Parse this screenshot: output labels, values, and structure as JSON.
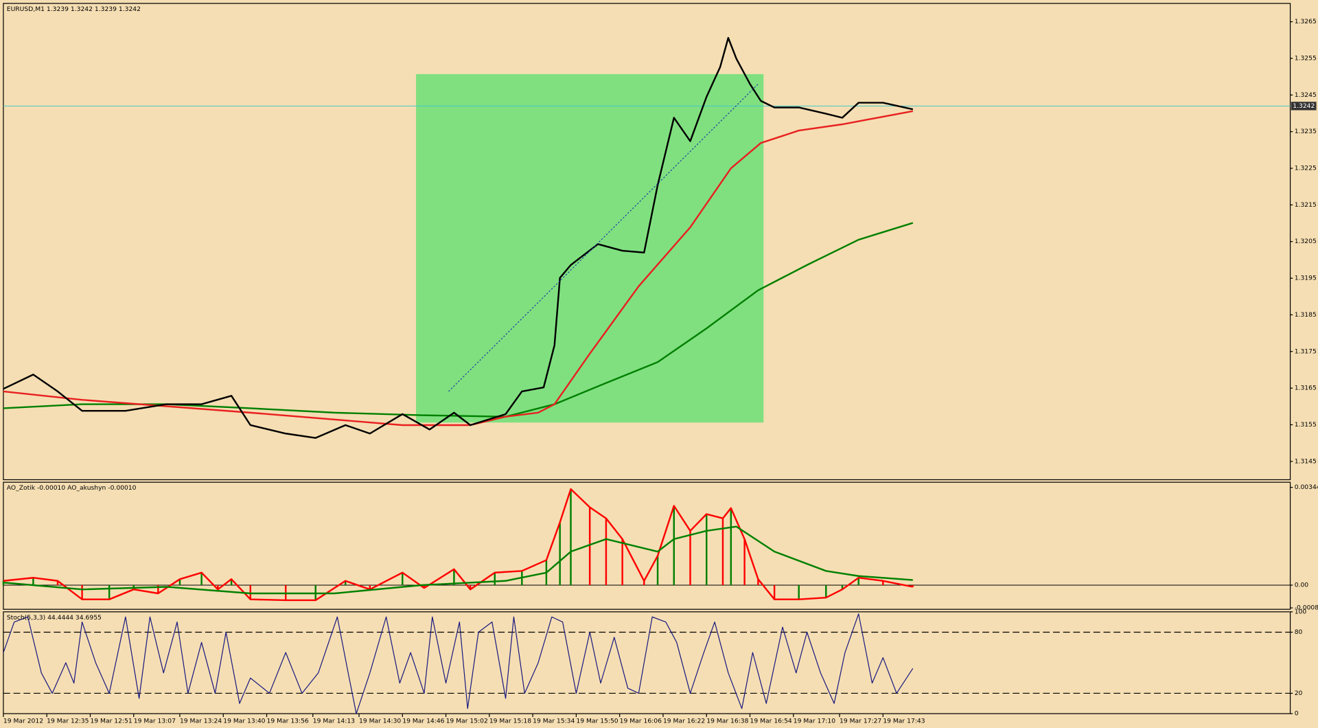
{
  "chart_data": [
    {
      "type": "line",
      "title": "EURUSD,M1  1.3239 1.3242 1.3239 1.3242",
      "xlim": [
        6,
        480
      ],
      "ylim": [
        1.314,
        1.327
      ],
      "yticks": [
        1.3265,
        1.3255,
        1.3245,
        1.3235,
        1.3225,
        1.3215,
        1.3205,
        1.3195,
        1.3185,
        1.3175,
        1.3165,
        1.3155,
        1.3145
      ],
      "rectangle": {
        "x": [
          158,
          286
        ],
        "y": [
          1.31556,
          1.32507
        ],
        "color": "#80e080"
      },
      "trendline": {
        "x": [
          170,
          284
        ],
        "y": [
          1.31641,
          1.3248
        ],
        "color": "#2040a0"
      },
      "last_price": 1.3242,
      "last_price_color": "#40c8c8",
      "series": [
        {
          "color": "#008000",
          "width": 2,
          "x": [
            6,
            35,
            66,
            97,
            128,
            160,
            191,
            209,
            228,
            247,
            265,
            284,
            302,
            321,
            341
          ],
          "values": [
            1.31595,
            1.31606,
            1.31606,
            1.31595,
            1.31583,
            1.31576,
            1.31572,
            1.31606,
            1.31664,
            1.31721,
            1.31813,
            1.31917,
            1.31986,
            1.32055,
            1.32101
          ]
        },
        {
          "color": "#e82020",
          "width": 2,
          "x": [
            6,
            35,
            97,
            153,
            178,
            191,
            203,
            209,
            222,
            240,
            259,
            274,
            285,
            299,
            315,
            341
          ],
          "values": [
            1.31641,
            1.31618,
            1.31583,
            1.31549,
            1.31549,
            1.31572,
            1.31583,
            1.31606,
            1.31744,
            1.31928,
            1.32089,
            1.3225,
            1.32319,
            1.32353,
            1.3237,
            1.32406
          ]
        },
        {
          "color": "#000000",
          "width": 2,
          "x": [
            6,
            17,
            26,
            35,
            51,
            66,
            79,
            90,
            97,
            110,
            121,
            132,
            141,
            153,
            163,
            172,
            178,
            191,
            197,
            205,
            209,
            211,
            215,
            225,
            234,
            242,
            247,
            253,
            259,
            265,
            270,
            273,
            276,
            281,
            285,
            290,
            299,
            309,
            315,
            321,
            330,
            341
          ],
          "values": [
            1.31648,
            1.31687,
            1.31641,
            1.31588,
            1.31588,
            1.31606,
            1.31606,
            1.31629,
            1.31549,
            1.31526,
            1.31514,
            1.31549,
            1.31526,
            1.31579,
            1.31537,
            1.31583,
            1.31549,
            1.31579,
            1.31641,
            1.31652,
            1.31767,
            1.31951,
            1.31986,
            1.32043,
            1.32025,
            1.3202,
            1.32204,
            1.32388,
            1.32324,
            1.32445,
            1.32526,
            1.32606,
            1.32549,
            1.3248,
            1.32434,
            1.32416,
            1.32416,
            1.32399,
            1.32388,
            1.32429,
            1.32429,
            1.32411
          ]
        }
      ]
    },
    {
      "type": "histogram-line",
      "title": "AO_Zotik -0.00010  AO_akushyn -0.00010",
      "xlim": [
        6,
        480
      ],
      "ylim": [
        -0.00085,
        0.00362
      ],
      "yticks": [
        0.00344,
        {
          "value": 0,
          "label": "0.00"
        },
        -0.0008
      ],
      "zero_line": true,
      "bar_colors": [
        "#008000",
        "#ff0000"
      ],
      "series": [
        {
          "color": "#ff0000",
          "width": 2,
          "histogram": true,
          "x": [
            6,
            17,
            26,
            35,
            45,
            54,
            63,
            71,
            79,
            85,
            90,
            97,
            110,
            121,
            132,
            141,
            153,
            161,
            172,
            178,
            187,
            197,
            206,
            211,
            215,
            222,
            228,
            234,
            242,
            247,
            253,
            259,
            265,
            271,
            274,
            279,
            284,
            290,
            299,
            309,
            315,
            321,
            330,
            341
          ],
          "values": [
            0.00015,
            0.00026,
            0.00015,
            -0.0005,
            -0.0005,
            -0.00015,
            -0.00029,
            0.00021,
            0.00044,
            -0.00015,
            0.00021,
            -0.0005,
            -0.00053,
            -0.00053,
            0.00015,
            -0.00015,
            0.00044,
            -0.0001,
            0.00056,
            -0.00015,
            0.00044,
            0.0005,
            0.00088,
            0.00221,
            0.00338,
            0.00274,
            0.00235,
            0.00162,
            0.00015,
            0.00103,
            0.00279,
            0.00191,
            0.0025,
            0.00235,
            0.00271,
            0.00162,
            0.00021,
            -0.0005,
            -0.0005,
            -0.00044,
            -0.00015,
            0.00026,
            0.00015,
            -6e-05
          ]
        },
        {
          "color": "#008000",
          "width": 2,
          "x": [
            6,
            35,
            66,
            97,
            128,
            160,
            191,
            206,
            215,
            228,
            247,
            253,
            265,
            276,
            290,
            309,
            321,
            341
          ],
          "values": [
            9e-05,
            -0.00015,
            -6e-05,
            -0.00029,
            -0.00029,
            0,
            0.00015,
            0.00044,
            0.00118,
            0.00162,
            0.00118,
            0.00162,
            0.00191,
            0.00206,
            0.00118,
            0.0005,
            0.00032,
            0.00018
          ]
        }
      ]
    },
    {
      "type": "line",
      "title": "Stoch(5,3,3) 44.4444 34.6955",
      "xlim": [
        6,
        480
      ],
      "ylim": [
        0,
        100
      ],
      "yticks": [
        100,
        80,
        20,
        0
      ],
      "levels": [
        80,
        20
      ],
      "xticks": [
        {
          "value": 6,
          "label": "19 Mar 2012"
        },
        {
          "value": 22,
          "label": "19 Mar 12:35"
        },
        {
          "value": 38,
          "label": "19 Mar 12:51"
        },
        {
          "value": 54,
          "label": "19 Mar 13:07"
        },
        {
          "value": 71,
          "label": "19 Mar 13:24"
        },
        {
          "value": 87,
          "label": "19 Mar 13:40"
        },
        {
          "value": 103,
          "label": "19 Mar 13:56"
        },
        {
          "value": 120,
          "label": "19 Mar 14:13"
        },
        {
          "value": 137,
          "label": "19 Mar 14:30"
        },
        {
          "value": 153,
          "label": "19 Mar 14:46"
        },
        {
          "value": 169,
          "label": "19 Mar 15:02"
        },
        {
          "value": 185,
          "label": "19 Mar 15:18"
        },
        {
          "value": 201,
          "label": "19 Mar 15:34"
        },
        {
          "value": 217,
          "label": "19 Mar 15:50"
        },
        {
          "value": 233,
          "label": "19 Mar 16:06"
        },
        {
          "value": 249,
          "label": "19 Mar 16:22"
        },
        {
          "value": 265,
          "label": "19 Mar 16:38"
        },
        {
          "value": 281,
          "label": "19 Mar 16:54"
        },
        {
          "value": 297,
          "label": "19 Mar 17:10"
        },
        {
          "value": 314,
          "label": "19 Mar 17:27"
        },
        {
          "value": 330,
          "label": "19 Mar 17:43"
        }
      ],
      "series": [
        {
          "color": "#1a1a80",
          "width": 1,
          "x": [
            6,
            10,
            15,
            20,
            24,
            29,
            32,
            35,
            40,
            45,
            51,
            56,
            60,
            65,
            70,
            74,
            79,
            84,
            88,
            93,
            97,
            104,
            110,
            116,
            122,
            129,
            133,
            136,
            141,
            147,
            152,
            156,
            161,
            164,
            169,
            174,
            177,
            181,
            186,
            191,
            194,
            198,
            203,
            208,
            212,
            217,
            222,
            226,
            231,
            236,
            240,
            245,
            250,
            254,
            259,
            264,
            268,
            273,
            278,
            282,
            287,
            293,
            298,
            302,
            307,
            312,
            316,
            321,
            326,
            330,
            335,
            341
          ],
          "values": [
            60,
            90,
            95,
            40,
            20,
            50,
            30,
            90,
            50,
            20,
            95,
            15,
            95,
            40,
            90,
            20,
            70,
            20,
            80,
            10,
            35,
            20,
            60,
            20,
            40,
            95,
            40,
            0,
            40,
            95,
            30,
            60,
            20,
            95,
            30,
            90,
            5,
            80,
            90,
            15,
            95,
            20,
            50,
            95,
            90,
            20,
            80,
            30,
            75,
            25,
            20,
            95,
            90,
            70,
            20,
            60,
            90,
            40,
            5,
            60,
            10,
            85,
            40,
            80,
            40,
            10,
            60,
            98,
            30,
            55,
            20,
            44.4444
          ]
        }
      ]
    }
  ]
}
